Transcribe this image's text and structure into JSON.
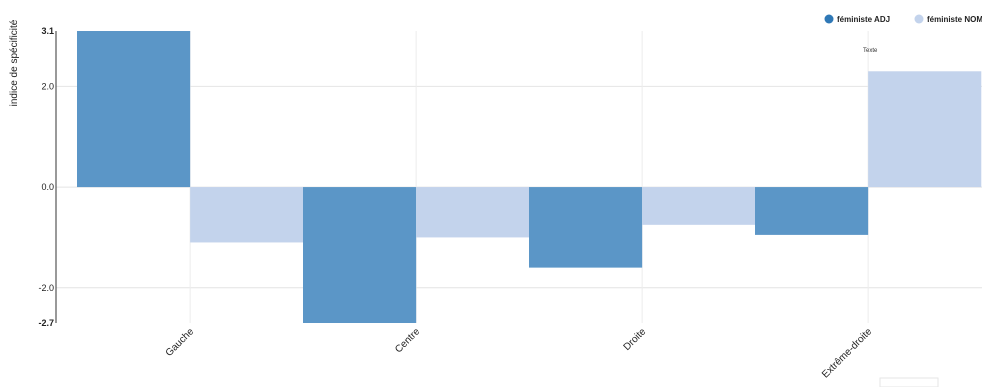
{
  "chart_data": {
    "type": "bar",
    "ylabel": "indice de spécificité",
    "categories": [
      "Gauche",
      "Centre",
      "Droite",
      "Extrême-droite"
    ],
    "series": [
      {
        "name": "féministe ADJ",
        "color": "#5b96c7",
        "values": [
          3.1,
          -2.7,
          -1.6,
          -0.95
        ]
      },
      {
        "name": "féministe NOM",
        "color": "#c3d3ec",
        "values": [
          -1.1,
          -1.0,
          -0.75,
          2.3
        ]
      }
    ],
    "ylim": [
      -2.7,
      3.1
    ],
    "yticks": [
      "3.1",
      "2.0",
      "0.0",
      "-2.0",
      "-2.7"
    ],
    "annotation": "Texte",
    "grid": true,
    "legend": "top-right"
  }
}
